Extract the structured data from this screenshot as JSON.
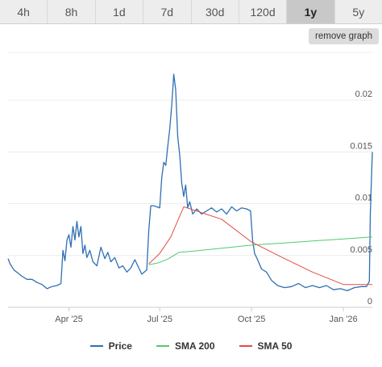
{
  "tabs": [
    {
      "label": "4h",
      "active": false
    },
    {
      "label": "8h",
      "active": false
    },
    {
      "label": "1d",
      "active": false
    },
    {
      "label": "7d",
      "active": false
    },
    {
      "label": "30d",
      "active": false
    },
    {
      "label": "120d",
      "active": false
    },
    {
      "label": "1y",
      "active": true
    },
    {
      "label": "5y",
      "active": false
    }
  ],
  "remove_graph_label": "remove graph",
  "chart_data": {
    "type": "line",
    "x_ticks": [
      "Apr '25",
      "Jul '25",
      "Oct '25",
      "Jan '26"
    ],
    "y_ticks": [
      "0",
      "0.005",
      "0.01",
      "0.015",
      "0.02"
    ],
    "ylim": [
      0,
      0.0225
    ],
    "xlim": [
      "2025-01-30",
      "2026-01-30"
    ],
    "grid": true,
    "legend_position": "bottom",
    "series": [
      {
        "name": "Price",
        "color": "#2f6fb3",
        "points": [
          [
            "2025-01-30",
            0.0047
          ],
          [
            "2025-02-01",
            0.0042
          ],
          [
            "2025-02-05",
            0.0036
          ],
          [
            "2025-02-09",
            0.0033
          ],
          [
            "2025-02-13",
            0.003
          ],
          [
            "2025-02-18",
            0.0027
          ],
          [
            "2025-02-23",
            0.0027
          ],
          [
            "2025-02-28",
            0.0024
          ],
          [
            "2025-03-05",
            0.0022
          ],
          [
            "2025-03-10",
            0.0018
          ],
          [
            "2025-03-15",
            0.002
          ],
          [
            "2025-03-20",
            0.0021
          ],
          [
            "2025-03-24",
            0.0023
          ],
          [
            "2025-03-26",
            0.0055
          ],
          [
            "2025-03-28",
            0.0045
          ],
          [
            "2025-03-30",
            0.0065
          ],
          [
            "2025-04-01",
            0.007
          ],
          [
            "2025-04-03",
            0.0058
          ],
          [
            "2025-04-05",
            0.0078
          ],
          [
            "2025-04-07",
            0.0065
          ],
          [
            "2025-04-09",
            0.0083
          ],
          [
            "2025-04-11",
            0.0068
          ],
          [
            "2025-04-13",
            0.0078
          ],
          [
            "2025-04-15",
            0.0052
          ],
          [
            "2025-04-17",
            0.006
          ],
          [
            "2025-04-19",
            0.0048
          ],
          [
            "2025-04-22",
            0.0055
          ],
          [
            "2025-04-25",
            0.0044
          ],
          [
            "2025-04-29",
            0.004
          ],
          [
            "2025-05-03",
            0.0058
          ],
          [
            "2025-05-07",
            0.0047
          ],
          [
            "2025-05-10",
            0.0053
          ],
          [
            "2025-05-13",
            0.0044
          ],
          [
            "2025-05-17",
            0.0048
          ],
          [
            "2025-05-21",
            0.0038
          ],
          [
            "2025-05-25",
            0.004
          ],
          [
            "2025-05-29",
            0.0034
          ],
          [
            "2025-06-02",
            0.0038
          ],
          [
            "2025-06-06",
            0.0046
          ],
          [
            "2025-06-09",
            0.004
          ],
          [
            "2025-06-13",
            0.0032
          ],
          [
            "2025-06-18",
            0.0036
          ],
          [
            "2025-06-20",
            0.0074
          ],
          [
            "2025-06-22",
            0.0098
          ],
          [
            "2025-06-25",
            0.0098
          ],
          [
            "2025-06-28",
            0.0097
          ],
          [
            "2025-07-01",
            0.0096
          ],
          [
            "2025-07-03",
            0.0125
          ],
          [
            "2025-07-05",
            0.014
          ],
          [
            "2025-07-07",
            0.0137
          ],
          [
            "2025-07-09",
            0.0155
          ],
          [
            "2025-07-11",
            0.0172
          ],
          [
            "2025-07-13",
            0.0195
          ],
          [
            "2025-07-15",
            0.0225
          ],
          [
            "2025-07-17",
            0.021
          ],
          [
            "2025-07-19",
            0.0165
          ],
          [
            "2025-07-21",
            0.0147
          ],
          [
            "2025-07-23",
            0.012
          ],
          [
            "2025-07-25",
            0.0107
          ],
          [
            "2025-07-27",
            0.0118
          ],
          [
            "2025-07-29",
            0.0096
          ],
          [
            "2025-07-31",
            0.0102
          ],
          [
            "2025-08-03",
            0.009
          ],
          [
            "2025-08-07",
            0.0095
          ],
          [
            "2025-08-12",
            0.009
          ],
          [
            "2025-08-17",
            0.0093
          ],
          [
            "2025-08-22",
            0.0096
          ],
          [
            "2025-08-27",
            0.0092
          ],
          [
            "2025-09-01",
            0.0095
          ],
          [
            "2025-09-06",
            0.009
          ],
          [
            "2025-09-11",
            0.0097
          ],
          [
            "2025-09-16",
            0.0093
          ],
          [
            "2025-09-21",
            0.0096
          ],
          [
            "2025-09-26",
            0.0095
          ],
          [
            "2025-09-30",
            0.0093
          ],
          [
            "2025-10-02",
            0.0065
          ],
          [
            "2025-10-04",
            0.0052
          ],
          [
            "2025-10-07",
            0.0046
          ],
          [
            "2025-10-11",
            0.0037
          ],
          [
            "2025-10-16",
            0.0034
          ],
          [
            "2025-10-21",
            0.0026
          ],
          [
            "2025-10-27",
            0.0021
          ],
          [
            "2025-11-03",
            0.0019
          ],
          [
            "2025-11-10",
            0.002
          ],
          [
            "2025-11-17",
            0.0023
          ],
          [
            "2025-11-24",
            0.0019
          ],
          [
            "2025-12-01",
            0.0021
          ],
          [
            "2025-12-08",
            0.0019
          ],
          [
            "2025-12-15",
            0.0021
          ],
          [
            "2025-12-22",
            0.0017
          ],
          [
            "2025-12-29",
            0.0018
          ],
          [
            "2026-01-05",
            0.0016
          ],
          [
            "2026-01-12",
            0.0019
          ],
          [
            "2026-01-19",
            0.002
          ],
          [
            "2026-01-24",
            0.002
          ],
          [
            "2026-01-27",
            0.0025
          ],
          [
            "2026-01-28",
            0.009
          ],
          [
            "2026-01-30",
            0.015
          ]
        ]
      },
      {
        "name": "SMA 200",
        "color": "#53c96e",
        "points": [
          [
            "2025-06-20",
            0.0041
          ],
          [
            "2025-06-30",
            0.0043
          ],
          [
            "2025-07-10",
            0.0047
          ],
          [
            "2025-07-20",
            0.0053
          ],
          [
            "2025-08-01",
            0.0054
          ],
          [
            "2025-09-01",
            0.0057
          ],
          [
            "2025-10-01",
            0.006
          ],
          [
            "2025-11-01",
            0.0062
          ],
          [
            "2025-12-01",
            0.0064
          ],
          [
            "2026-01-01",
            0.0066
          ],
          [
            "2026-01-30",
            0.0068
          ]
        ]
      },
      {
        "name": "SMA 50",
        "color": "#e64b45",
        "points": [
          [
            "2025-06-20",
            0.0042
          ],
          [
            "2025-07-01",
            0.0052
          ],
          [
            "2025-07-12",
            0.0068
          ],
          [
            "2025-07-25",
            0.0097
          ],
          [
            "2025-09-01",
            0.0085
          ],
          [
            "2025-10-01",
            0.0063
          ],
          [
            "2025-11-01",
            0.0048
          ],
          [
            "2025-12-01",
            0.0034
          ],
          [
            "2026-01-01",
            0.0022
          ],
          [
            "2026-01-30",
            0.0022
          ]
        ]
      }
    ]
  }
}
